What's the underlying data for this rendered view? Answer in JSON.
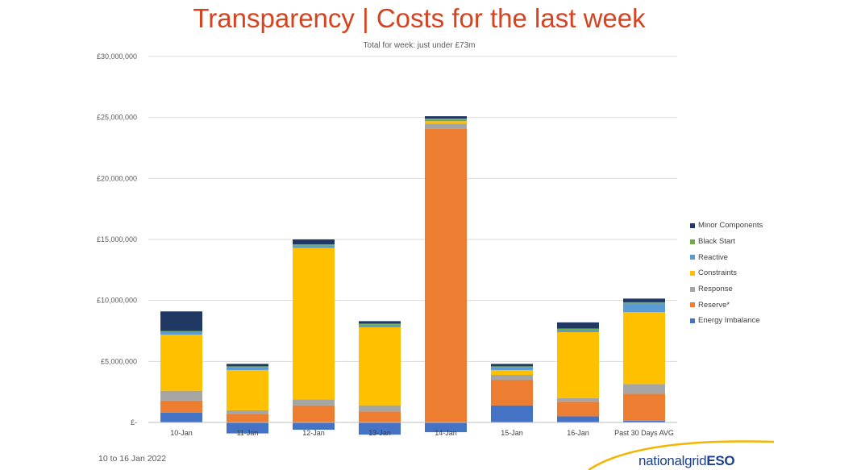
{
  "header": {
    "title": "Transparency | Costs for the last week",
    "subtitle": "Total for week: just under £73m"
  },
  "footer": {
    "date_range": "10 to 16 Jan 2022",
    "logo_text_main": "nationalgrid",
    "logo_text_accent": "ESO"
  },
  "colors": {
    "Energy Imbalance": "#4472c4",
    "Reserve*": "#ed7d31",
    "Response": "#a5a5a5",
    "Constraints": "#ffc000",
    "Reactive": "#5b9bd5",
    "Black Start": "#70ad47",
    "Minor Components": "#1f3864"
  },
  "chart_data": {
    "type": "bar",
    "stacked": true,
    "title": "Transparency | Costs for the last week",
    "subtitle": "Total for week: just under £73m",
    "xlabel": "",
    "ylabel": "",
    "ylim": [
      -1000000,
      30000000
    ],
    "yticks": [
      0,
      5000000,
      10000000,
      15000000,
      20000000,
      25000000,
      30000000
    ],
    "ytick_labels": [
      "£-",
      "£5,000,000",
      "£10,000,000",
      "£15,000,000",
      "£20,000,000",
      "£25,000,000",
      "£30,000,000"
    ],
    "categories": [
      "10-Jan",
      "11-Jan",
      "12-Jan",
      "13-Jan",
      "14-Jan",
      "15-Jan",
      "16-Jan",
      "Past 30 Days AVG"
    ],
    "legend_position": "right",
    "grid": true,
    "series": [
      {
        "name": "Energy Imbalance",
        "values": [
          800000,
          -900000,
          -600000,
          -1000000,
          -800000,
          1400000,
          500000,
          150000
        ]
      },
      {
        "name": "Reserve*",
        "values": [
          1000000,
          700000,
          1400000,
          900000,
          24100000,
          2100000,
          1200000,
          2200000
        ]
      },
      {
        "name": "Response",
        "values": [
          800000,
          300000,
          500000,
          500000,
          400000,
          400000,
          300000,
          800000
        ]
      },
      {
        "name": "Constraints",
        "values": [
          4600000,
          3300000,
          12400000,
          6400000,
          200000,
          400000,
          5400000,
          5900000
        ]
      },
      {
        "name": "Reactive",
        "values": [
          200000,
          200000,
          200000,
          200000,
          100000,
          200000,
          200000,
          700000
        ]
      },
      {
        "name": "Black Start",
        "values": [
          100000,
          100000,
          100000,
          100000,
          100000,
          100000,
          100000,
          100000
        ]
      },
      {
        "name": "Minor Components",
        "values": [
          1600000,
          200000,
          400000,
          200000,
          200000,
          200000,
          500000,
          300000
        ]
      }
    ],
    "legend_order": [
      "Minor Components",
      "Black Start",
      "Reactive",
      "Constraints",
      "Response",
      "Reserve*",
      "Energy Imbalance"
    ]
  }
}
